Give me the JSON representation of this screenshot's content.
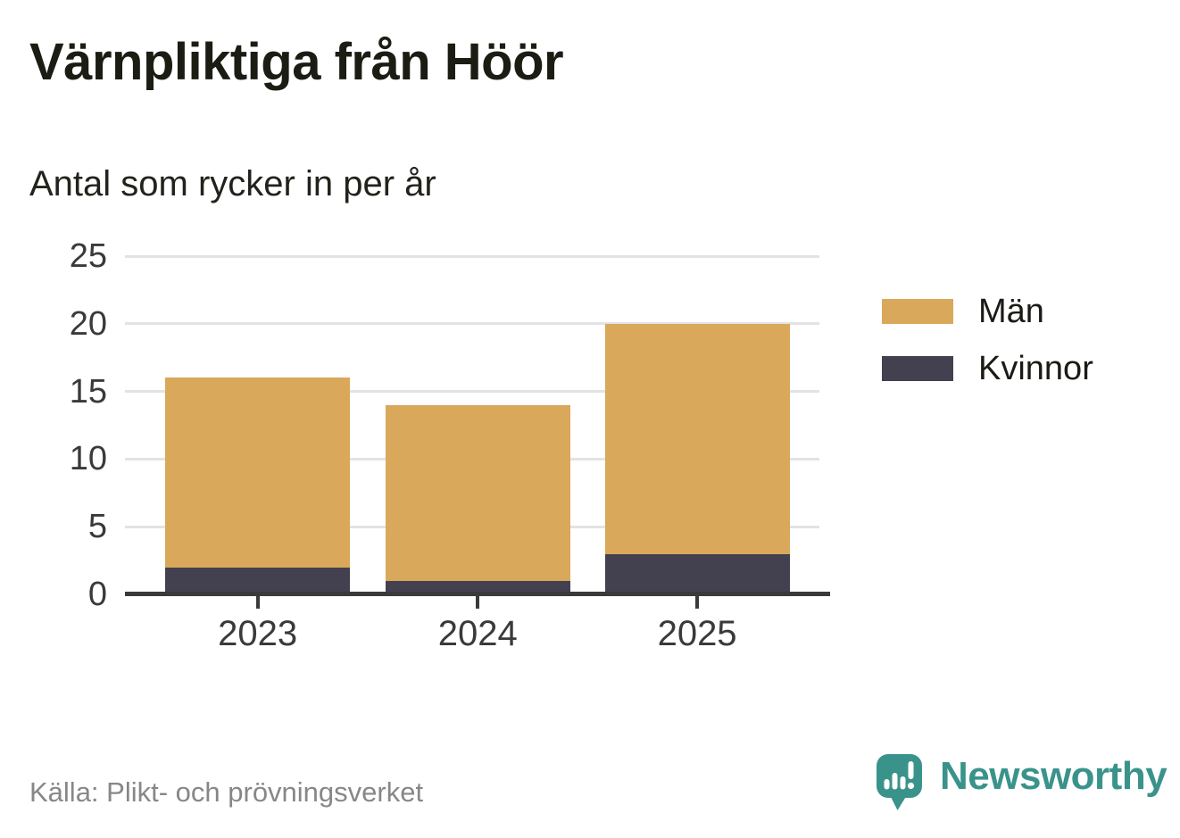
{
  "header": {
    "title": "Värnpliktiga från Höör",
    "subtitle": "Antal som rycker in per år"
  },
  "chart_data": {
    "type": "bar",
    "stacked": true,
    "title": "Värnpliktiga från Höör",
    "subtitle": "Antal som rycker in per år",
    "categories": [
      "2023",
      "2024",
      "2025"
    ],
    "series": [
      {
        "name": "Män",
        "color": "#D9A85A",
        "values": [
          14,
          13,
          17
        ]
      },
      {
        "name": "Kvinnor",
        "color": "#434050",
        "values": [
          2,
          1,
          3
        ]
      }
    ],
    "stack_bottom_to_top": [
      "Kvinnor",
      "Män"
    ],
    "totals": [
      16,
      14,
      20
    ],
    "xlabel": "",
    "ylabel": "",
    "ylim": [
      0,
      25
    ],
    "yticks": [
      0,
      5,
      10,
      15,
      20,
      25
    ],
    "grid": true,
    "legend_position": "right"
  },
  "legend": {
    "items": [
      {
        "label": "Män",
        "color": "#D9A85A"
      },
      {
        "label": "Kvinnor",
        "color": "#434050"
      }
    ]
  },
  "footer": {
    "source": "Källa: Plikt- och prövningsverket",
    "brand": "Newsworthy"
  },
  "icons": {
    "brand": "speech-bubble-bar-chart-exclamation-icon"
  },
  "colors": {
    "bar_men": "#D9A85A",
    "bar_women": "#434050",
    "grid": "#E3E3E3",
    "axis": "#3A3A3A",
    "tick_label": "#3A3A3A",
    "title": "#1B1C13",
    "subtitle": "#22231C",
    "source": "#878787",
    "brand_teal": "#3A938B",
    "background": "#FFFFFF"
  }
}
